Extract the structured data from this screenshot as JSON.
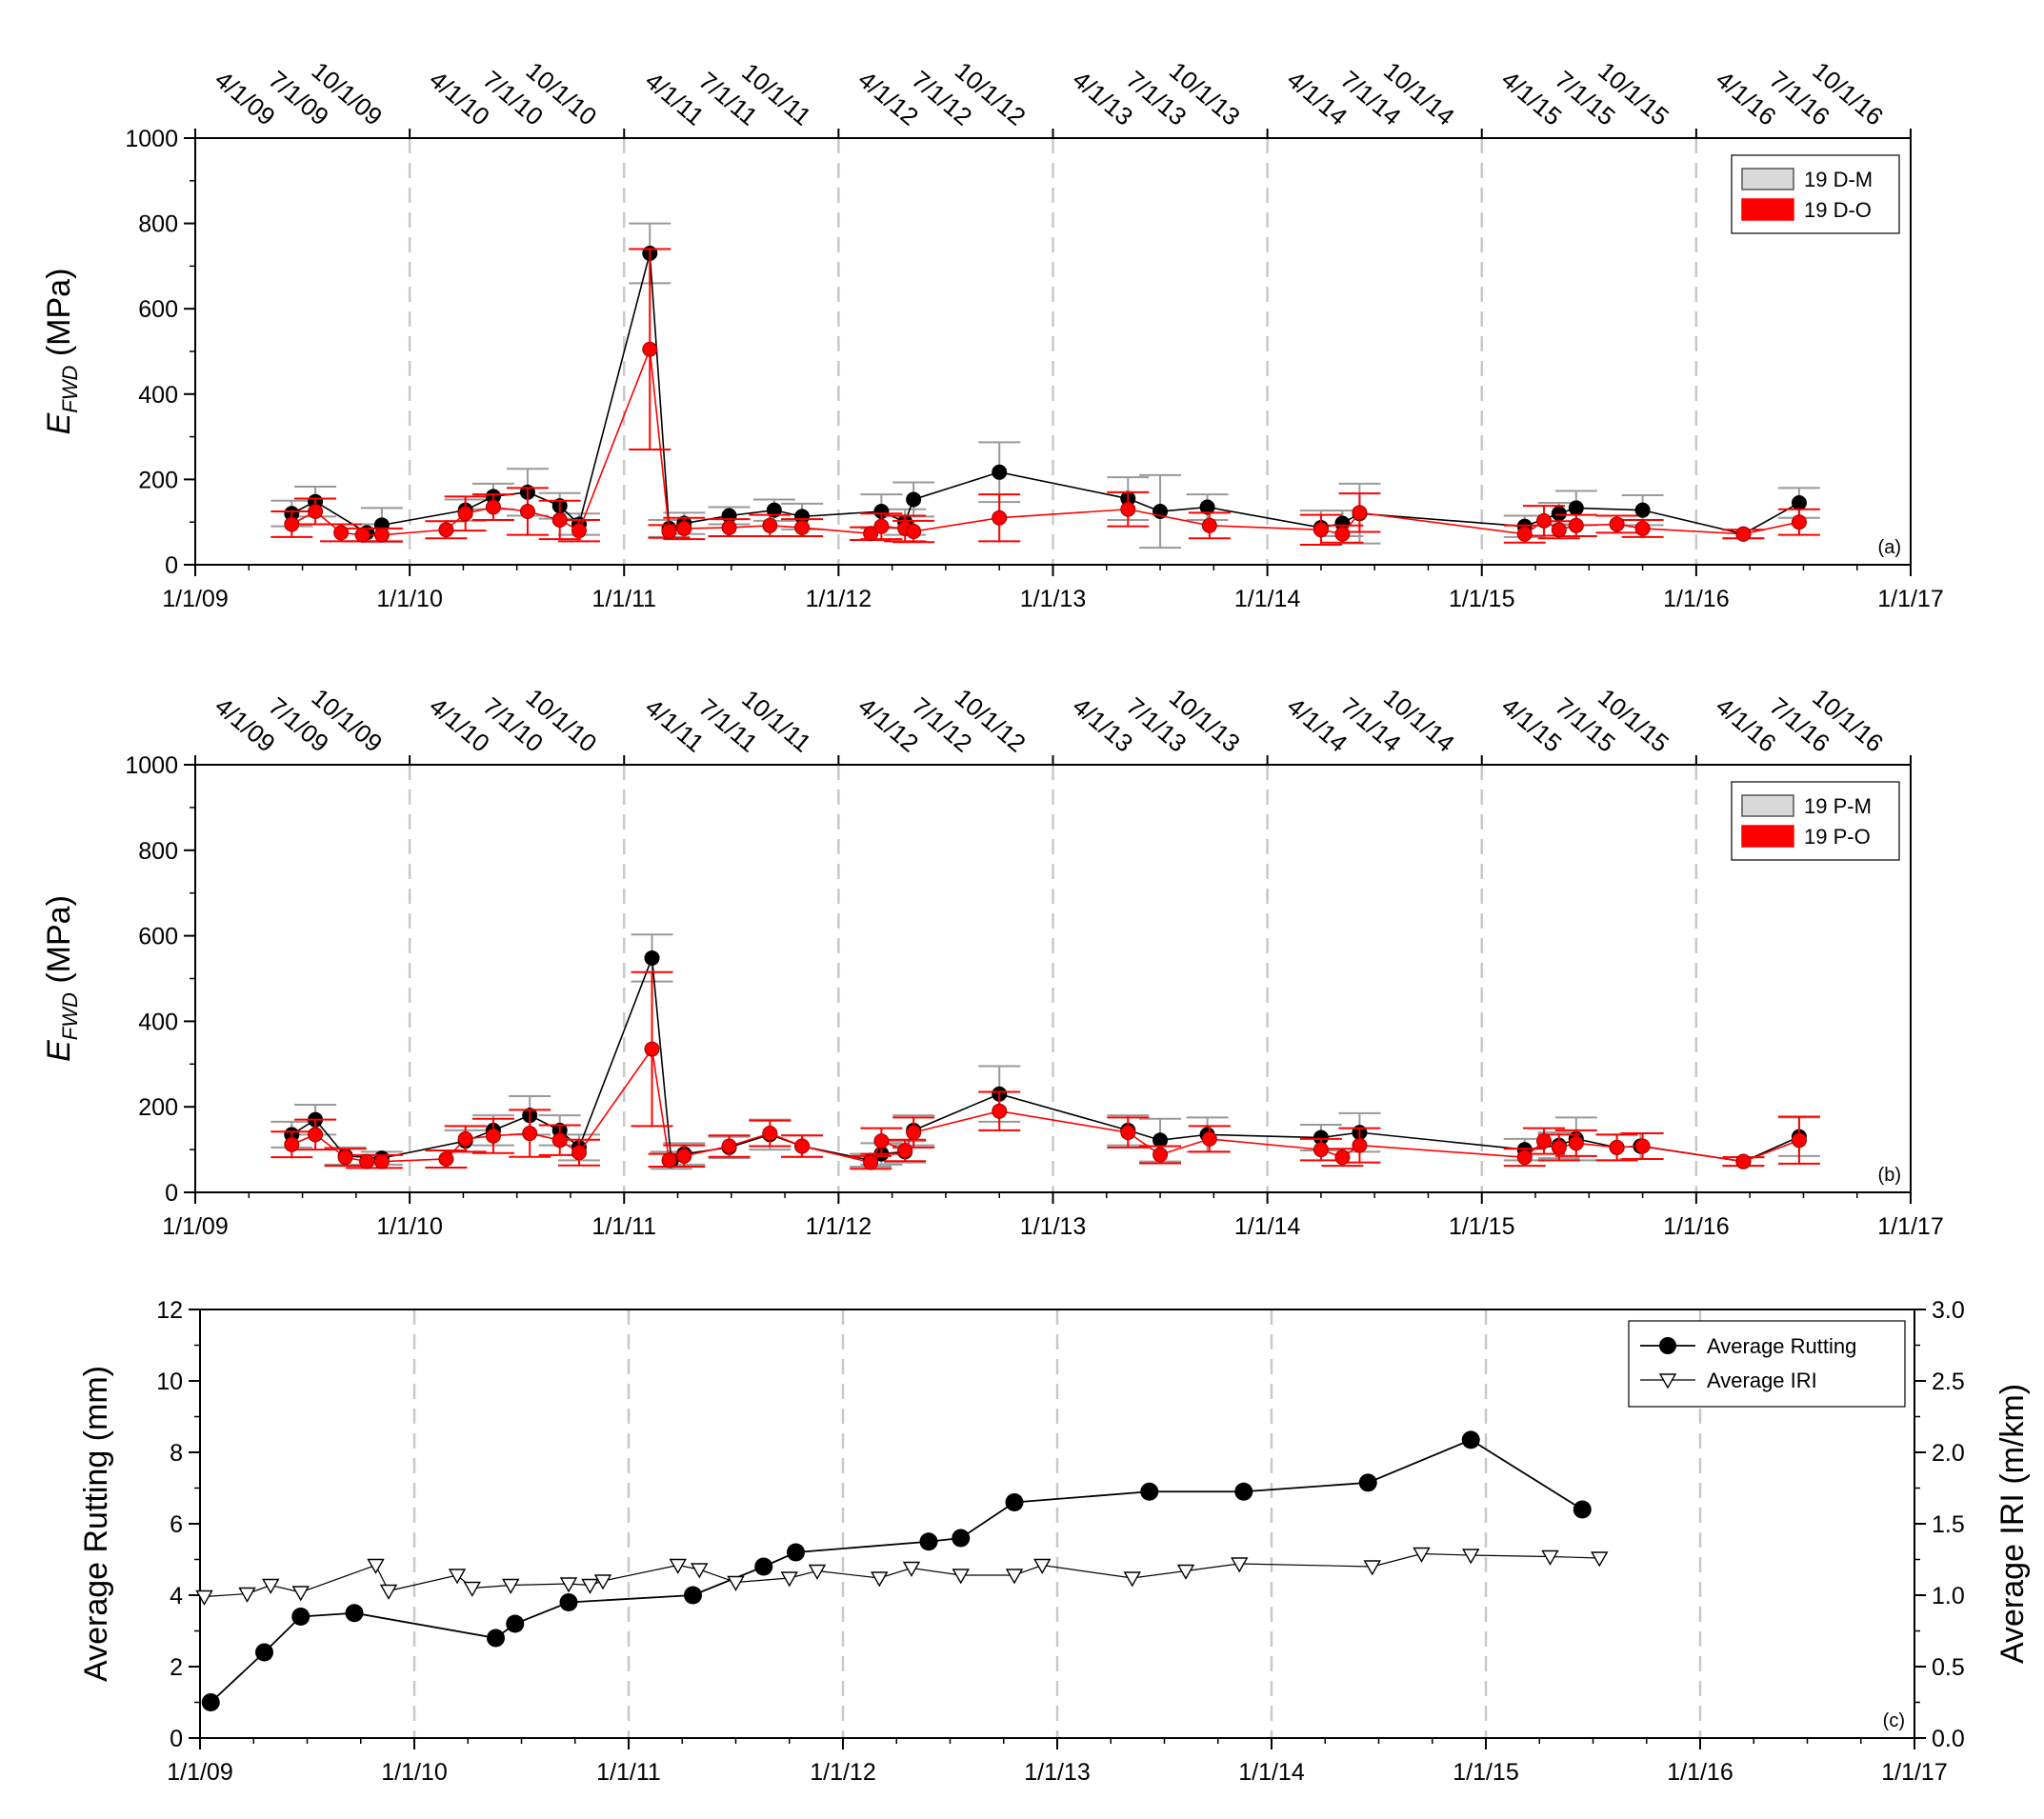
{
  "colors": {
    "black_series": "#000000",
    "red_series": "#ff0000",
    "gray_error": "#999999",
    "grid": "#c8c8c8"
  },
  "chart_data": [
    {
      "type": "scatter",
      "panel": "(a)",
      "xlabel_ticks": [
        "1/1/09",
        "1/1/10",
        "1/1/11",
        "1/1/12",
        "1/1/13",
        "1/1/14",
        "1/1/15",
        "1/1/16",
        "1/1/17"
      ],
      "top_ticks": [
        "4/1/09",
        "7/1/09",
        "10/1/09",
        "4/1/10",
        "7/1/10",
        "10/1/10",
        "4/1/11",
        "7/1/11",
        "10/1/11",
        "4/1/12",
        "7/1/12",
        "10/1/12",
        "4/1/13",
        "7/1/13",
        "10/1/13",
        "4/1/14",
        "7/1/14",
        "10/1/14",
        "4/1/15",
        "7/1/15",
        "10/1/15",
        "4/1/16",
        "7/1/16",
        "10/1/16"
      ],
      "ylabel_main": "E",
      "ylabel_sub": "FWD",
      "ylabel_unit": " (MPa)",
      "xlim": [
        2009,
        2017
      ],
      "ylim": [
        0,
        1000
      ],
      "yticks": [
        "0",
        "200",
        "400",
        "600",
        "800",
        "1000"
      ],
      "legend": [
        "19 D-M",
        "19 D-O"
      ],
      "series": [
        {
          "name": "19 D-M",
          "color": "#000000",
          "x": [
            2009.45,
            2009.56,
            2009.8,
            2009.87,
            2010.26,
            2010.39,
            2010.55,
            2010.7,
            2010.79,
            2011.12,
            2011.21,
            2011.28,
            2011.49,
            2011.7,
            2011.83,
            2012.2,
            2012.31,
            2012.35,
            2012.75,
            2013.35,
            2013.5,
            2013.72,
            2014.25,
            2014.35,
            2014.43,
            2015.2,
            2015.36,
            2015.44,
            2015.75,
            2016.22,
            2016.48
          ],
          "y": [
            120,
            148,
            75,
            93,
            128,
            160,
            170,
            138,
            95,
            730,
            85,
            97,
            115,
            128,
            113,
            125,
            100,
            153,
            217,
            155,
            125,
            135,
            87,
            97,
            120,
            90,
            120,
            133,
            128,
            72,
            145
          ],
          "err": [
            30,
            35,
            20,
            40,
            25,
            30,
            55,
            30,
            25,
            70,
            20,
            25,
            20,
            25,
            30,
            40,
            30,
            40,
            70,
            50,
            85,
            30,
            40,
            30,
            70,
            25,
            25,
            40,
            35,
            10,
            35
          ]
        },
        {
          "name": "19 D-O",
          "color": "#ff0000",
          "x": [
            2009.45,
            2009.56,
            2009.68,
            2009.78,
            2009.87,
            2010.17,
            2010.26,
            2010.39,
            2010.55,
            2010.7,
            2010.79,
            2011.12,
            2011.21,
            2011.28,
            2011.49,
            2011.68,
            2011.83,
            2012.15,
            2012.2,
            2012.31,
            2012.35,
            2012.75,
            2013.35,
            2013.73,
            2014.25,
            2014.35,
            2014.43,
            2015.2,
            2015.29,
            2015.36,
            2015.44,
            2015.63,
            2015.75,
            2016.22,
            2016.48
          ],
          "y": [
            95,
            125,
            75,
            70,
            70,
            82,
            120,
            135,
            125,
            105,
            80,
            505,
            78,
            85,
            87,
            92,
            87,
            73,
            90,
            85,
            78,
            110,
            130,
            92,
            82,
            72,
            122,
            72,
            103,
            82,
            92,
            95,
            85,
            72,
            100
          ],
          "err": [
            30,
            30,
            20,
            15,
            15,
            20,
            40,
            30,
            55,
            45,
            25,
            235,
            15,
            25,
            20,
            25,
            20,
            15,
            30,
            30,
            25,
            55,
            40,
            30,
            35,
            20,
            45,
            20,
            35,
            20,
            25,
            20,
            20,
            10,
            30
          ]
        }
      ]
    },
    {
      "type": "scatter",
      "panel": "(b)",
      "xlabel_ticks": [
        "1/1/09",
        "1/1/10",
        "1/1/11",
        "1/1/12",
        "1/1/13",
        "1/1/14",
        "1/1/15",
        "1/1/16",
        "1/1/17"
      ],
      "top_ticks": [
        "4/1/09",
        "7/1/09",
        "10/1/09",
        "4/1/10",
        "7/1/10",
        "10/1/10",
        "4/1/11",
        "7/1/11",
        "10/1/11",
        "4/1/12",
        "7/1/12",
        "10/1/12",
        "4/1/13",
        "7/1/13",
        "10/1/13",
        "4/1/14",
        "7/1/14",
        "10/1/14",
        "4/1/15",
        "7/1/15",
        "10/1/15",
        "4/1/16",
        "7/1/16",
        "10/1/16"
      ],
      "ylabel_main": "E",
      "ylabel_sub": "FWD",
      "ylabel_unit": " (MPa)",
      "xlim": [
        2009,
        2017
      ],
      "ylim": [
        0,
        1000
      ],
      "yticks": [
        "0",
        "200",
        "400",
        "600",
        "800",
        "1000"
      ],
      "legend": [
        "19 P-M",
        "19 P-O"
      ],
      "series": [
        {
          "name": "19 P-M",
          "color": "#000000",
          "x": [
            2009.45,
            2009.56,
            2009.7,
            2009.87,
            2010.26,
            2010.39,
            2010.56,
            2010.7,
            2010.79,
            2011.13,
            2011.22,
            2011.28,
            2011.49,
            2011.68,
            2011.83,
            2012.15,
            2012.2,
            2012.31,
            2012.35,
            2012.75,
            2013.35,
            2013.5,
            2013.72,
            2014.25,
            2014.43,
            2015.2,
            2015.36,
            2015.44,
            2015.63,
            2015.74,
            2016.22,
            2016.48
          ],
          "y": [
            135,
            170,
            85,
            80,
            120,
            145,
            180,
            145,
            105,
            548,
            75,
            90,
            105,
            135,
            108,
            75,
            90,
            95,
            145,
            230,
            145,
            122,
            135,
            128,
            140,
            100,
            110,
            125,
            105,
            108,
            72,
            130
          ],
          "err": [
            30,
            35,
            20,
            15,
            25,
            35,
            45,
            35,
            30,
            55,
            20,
            25,
            25,
            35,
            25,
            15,
            25,
            25,
            35,
            65,
            35,
            50,
            40,
            30,
            45,
            25,
            30,
            50,
            30,
            30,
            10,
            45
          ]
        },
        {
          "name": "19 P-O",
          "color": "#ff0000",
          "x": [
            2009.45,
            2009.56,
            2009.7,
            2009.8,
            2009.87,
            2010.17,
            2010.26,
            2010.39,
            2010.56,
            2010.7,
            2010.79,
            2011.13,
            2011.21,
            2011.28,
            2011.49,
            2011.68,
            2011.83,
            2012.15,
            2012.2,
            2012.31,
            2012.35,
            2012.75,
            2013.35,
            2013.5,
            2013.73,
            2014.25,
            2014.35,
            2014.43,
            2015.2,
            2015.29,
            2015.36,
            2015.44,
            2015.63,
            2015.75,
            2016.22,
            2016.48
          ],
          "y": [
            112,
            135,
            82,
            72,
            72,
            78,
            125,
            132,
            138,
            122,
            93,
            335,
            75,
            85,
            108,
            138,
            108,
            70,
            120,
            98,
            140,
            190,
            140,
            88,
            125,
            100,
            82,
            110,
            82,
            120,
            105,
            115,
            105,
            108,
            72,
            122
          ],
          "err": [
            30,
            35,
            20,
            15,
            15,
            20,
            30,
            40,
            55,
            35,
            30,
            180,
            15,
            25,
            25,
            30,
            25,
            15,
            30,
            25,
            35,
            45,
            35,
            20,
            30,
            25,
            20,
            40,
            20,
            30,
            30,
            30,
            30,
            30,
            10,
            55
          ]
        }
      ]
    },
    {
      "type": "line",
      "panel": "(c)",
      "xlabel_ticks": [
        "1/1/09",
        "1/1/10",
        "1/1/11",
        "1/1/12",
        "1/1/13",
        "1/1/14",
        "1/1/15",
        "1/1/16",
        "1/1/17"
      ],
      "xlim": [
        2009,
        2017
      ],
      "ylabel_left": "Average Rutting (mm)",
      "ylabel_right": "Average IRI (m/km)",
      "ylim_left": [
        0,
        12
      ],
      "ylim_right": [
        0,
        3
      ],
      "yticks_left": [
        "0",
        "2",
        "4",
        "6",
        "8",
        "10",
        "12"
      ],
      "yticks_right": [
        "0.0",
        "0.5",
        "1.0",
        "1.5",
        "2.0",
        "2.5",
        "3.0"
      ],
      "legend": [
        "Average Rutting",
        "Average IRI"
      ],
      "series": [
        {
          "name": "Average Rutting",
          "axis": "left",
          "marker": "circle",
          "x": [
            2009.05,
            2009.3,
            2009.47,
            2009.72,
            2010.38,
            2010.47,
            2010.72,
            2011.3,
            2011.63,
            2011.78,
            2012.4,
            2012.55,
            2012.8,
            2013.43,
            2013.87,
            2014.45,
            2014.93,
            2015.45
          ],
          "y": [
            1.0,
            2.4,
            3.4,
            3.5,
            2.8,
            3.2,
            3.8,
            4.0,
            4.8,
            5.2,
            5.5,
            5.6,
            6.6,
            6.9,
            6.9,
            7.15,
            8.35,
            6.4
          ]
        },
        {
          "name": "Average IRI",
          "axis": "right",
          "marker": "triangle-down",
          "x": [
            2009.02,
            2009.22,
            2009.33,
            2009.47,
            2009.82,
            2009.88,
            2010.2,
            2010.27,
            2010.45,
            2010.72,
            2010.82,
            2010.88,
            2011.23,
            2011.33,
            2011.5,
            2011.75,
            2011.88,
            2012.17,
            2012.32,
            2012.55,
            2012.8,
            2012.93,
            2013.35,
            2013.6,
            2013.85,
            2014.47,
            2014.7,
            2014.93,
            2015.3,
            2015.53
          ],
          "y": [
            0.99,
            1.01,
            1.07,
            1.02,
            1.21,
            1.03,
            1.14,
            1.05,
            1.07,
            1.08,
            1.07,
            1.1,
            1.21,
            1.18,
            1.09,
            1.12,
            1.17,
            1.12,
            1.19,
            1.14,
            1.14,
            1.21,
            1.12,
            1.17,
            1.22,
            1.2,
            1.29,
            1.28,
            1.27,
            1.26
          ]
        }
      ]
    }
  ]
}
